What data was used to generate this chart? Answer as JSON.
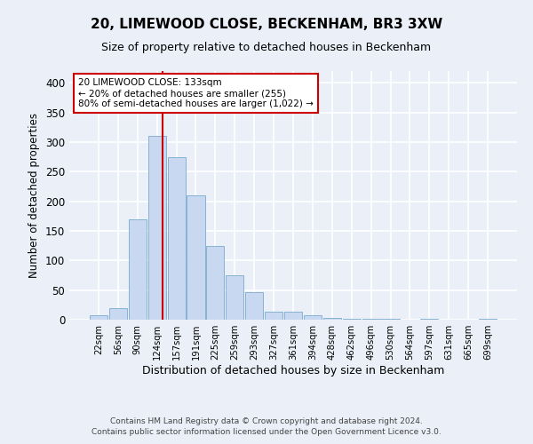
{
  "title1": "20, LIMEWOOD CLOSE, BECKENHAM, BR3 3XW",
  "title2": "Size of property relative to detached houses in Beckenham",
  "xlabel": "Distribution of detached houses by size in Beckenham",
  "ylabel": "Number of detached properties",
  "bar_labels": [
    "22sqm",
    "56sqm",
    "90sqm",
    "124sqm",
    "157sqm",
    "191sqm",
    "225sqm",
    "259sqm",
    "293sqm",
    "327sqm",
    "361sqm",
    "394sqm",
    "428sqm",
    "462sqm",
    "496sqm",
    "530sqm",
    "564sqm",
    "597sqm",
    "631sqm",
    "665sqm",
    "699sqm"
  ],
  "bar_values": [
    7,
    20,
    170,
    310,
    275,
    210,
    125,
    75,
    47,
    13,
    13,
    8,
    3,
    2,
    1,
    1,
    0,
    2,
    0,
    0,
    2
  ],
  "bar_color": "#c8d8f0",
  "bar_edgecolor": "#7aaad0",
  "background_color": "#eaeff8",
  "grid_color": "#ffffff",
  "vline_x": 3.27,
  "vline_color": "#cc0000",
  "annotation_line1": "20 LIMEWOOD CLOSE: 133sqm",
  "annotation_line2": "← 20% of detached houses are smaller (255)",
  "annotation_line3": "80% of semi-detached houses are larger (1,022) →",
  "annotation_box_color": "#ffffff",
  "annotation_box_edgecolor": "#cc0000",
  "footer1": "Contains HM Land Registry data © Crown copyright and database right 2024.",
  "footer2": "Contains public sector information licensed under the Open Government Licence v3.0.",
  "ylim": [
    0,
    420
  ],
  "yticks": [
    0,
    50,
    100,
    150,
    200,
    250,
    300,
    350,
    400
  ]
}
